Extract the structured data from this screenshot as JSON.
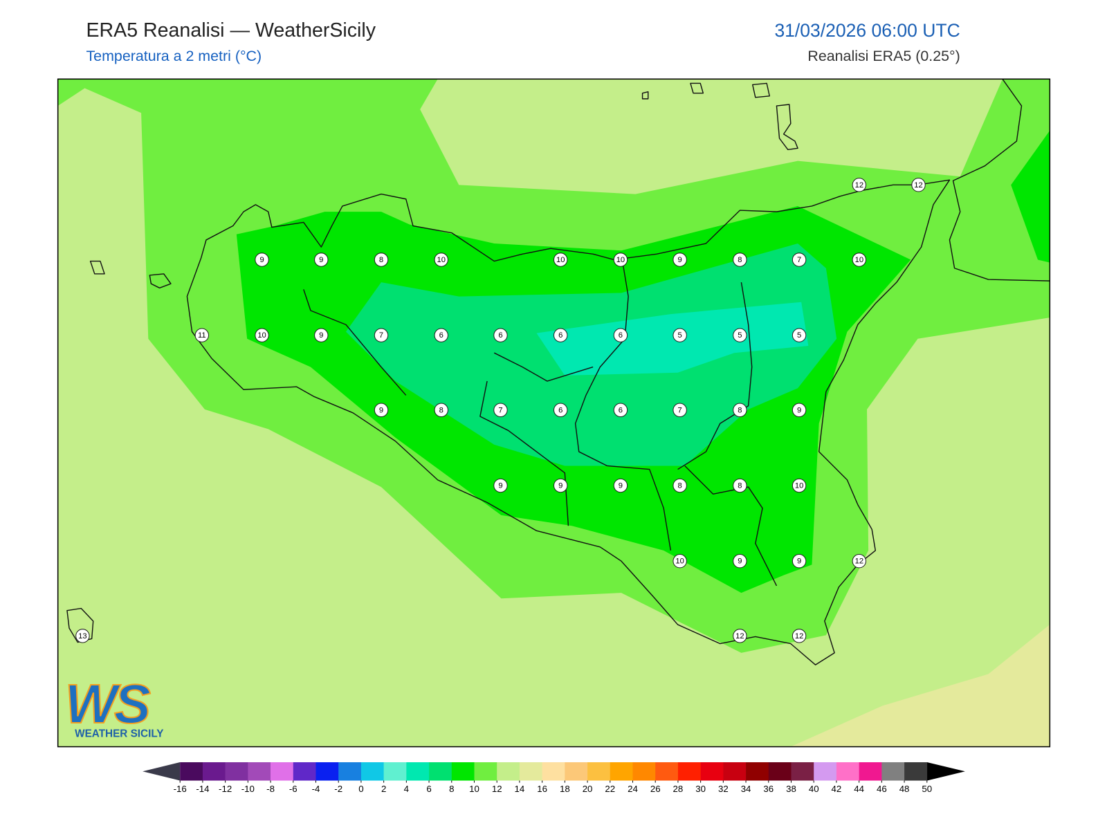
{
  "header": {
    "title": "ERA5 Reanalisi — WeatherSicily",
    "subtitle": "Temperatura a 2 metri (°C)",
    "valid_time": "31/03/2026 06:00 UTC",
    "source": "Reanalisi ERA5 (0.25°)"
  },
  "map": {
    "station_values": [
      12,
      12,
      9,
      9,
      8,
      10,
      10,
      10,
      9,
      8,
      7,
      10,
      11,
      10,
      9,
      7,
      6,
      6,
      6,
      6,
      5,
      5,
      5,
      9,
      8,
      7,
      6,
      6,
      7,
      8,
      9,
      9,
      9,
      9,
      8,
      8,
      10,
      10,
      9,
      9,
      12,
      13,
      12,
      12
    ]
  },
  "colorbar": {
    "ticks": [
      -16,
      -14,
      -12,
      -10,
      -8,
      -6,
      -4,
      -2,
      0,
      2,
      4,
      6,
      8,
      10,
      12,
      14,
      16,
      18,
      20,
      22,
      24,
      26,
      28,
      30,
      32,
      34,
      36,
      38,
      40,
      42,
      44,
      46,
      48,
      50
    ],
    "colors": [
      "#4a0a5e",
      "#6a1a8e",
      "#8030a0",
      "#a24ab8",
      "#e070e8",
      "#6028c8",
      "#0a20f0",
      "#1880e0",
      "#10c8e6",
      "#60f0d0",
      "#00e8b0",
      "#00e070",
      "#00e600",
      "#70ee40",
      "#c4ee8a",
      "#e4ea9c",
      "#fee0a0",
      "#fcc878",
      "#fcc040",
      "#ffa500",
      "#ff8800",
      "#ff5a10",
      "#ff2000",
      "#e80010",
      "#c80010",
      "#900000",
      "#6a0018",
      "#7a2045",
      "#d49af0",
      "#ff70c8",
      "#f01890",
      "#808080",
      "#3a3a3a"
    ],
    "under_color": "#3a3a4a",
    "over_color": "#000000"
  },
  "logo": {
    "initials": "WS",
    "name": "WEATHER SICILY"
  }
}
